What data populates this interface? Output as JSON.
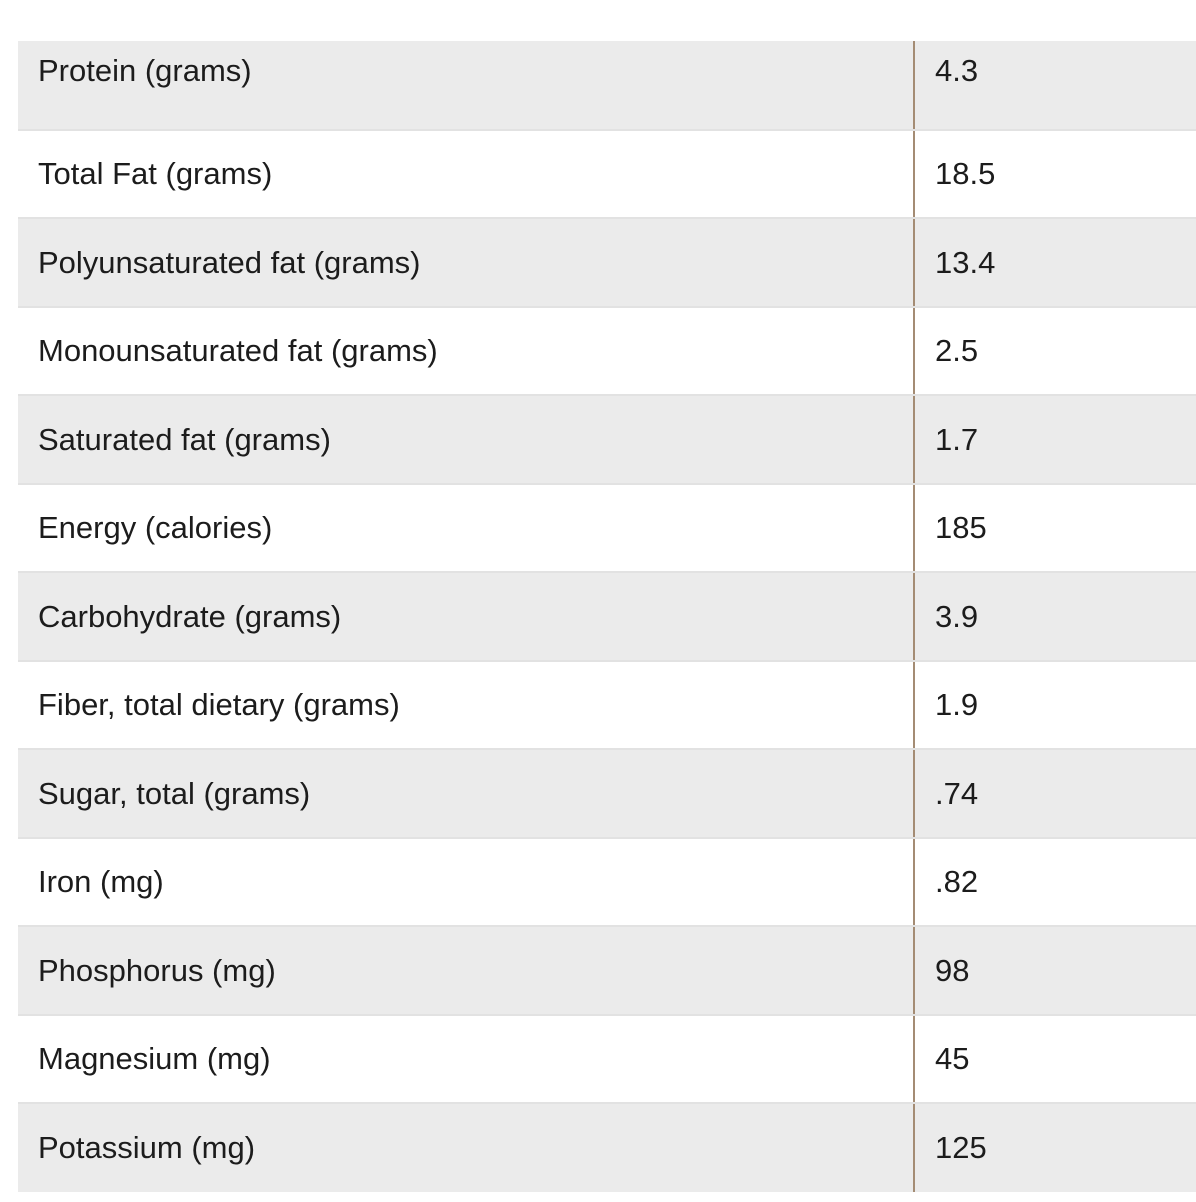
{
  "table": {
    "rows": [
      {
        "nutrient": "Protein (grams)",
        "value": "4.3"
      },
      {
        "nutrient": "Total Fat (grams)",
        "value": "18.5"
      },
      {
        "nutrient": "Polyunsaturated fat (grams)",
        "value": "13.4"
      },
      {
        "nutrient": "Monounsaturated fat (grams)",
        "value": "2.5"
      },
      {
        "nutrient": "Saturated fat (grams)",
        "value": "1.7"
      },
      {
        "nutrient": "Energy (calories)",
        "value": "185"
      },
      {
        "nutrient": "Carbohydrate (grams)",
        "value": "3.9"
      },
      {
        "nutrient": "Fiber, total dietary (grams)",
        "value": "1.9"
      },
      {
        "nutrient": "Sugar, total (grams)",
        "value": ".74"
      },
      {
        "nutrient": "Iron (mg)",
        "value": ".82"
      },
      {
        "nutrient": "Phosphorus (mg)",
        "value": "98"
      },
      {
        "nutrient": "Magnesium (mg)",
        "value": "45"
      },
      {
        "nutrient": "Potassium (mg)",
        "value": "125"
      }
    ]
  },
  "colors": {
    "row_shaded": "#ebebeb",
    "row_plain": "#ffffff",
    "column_divider": "#a48c74",
    "row_divider": "#e2e2e2",
    "text": "#1c1c1c"
  }
}
